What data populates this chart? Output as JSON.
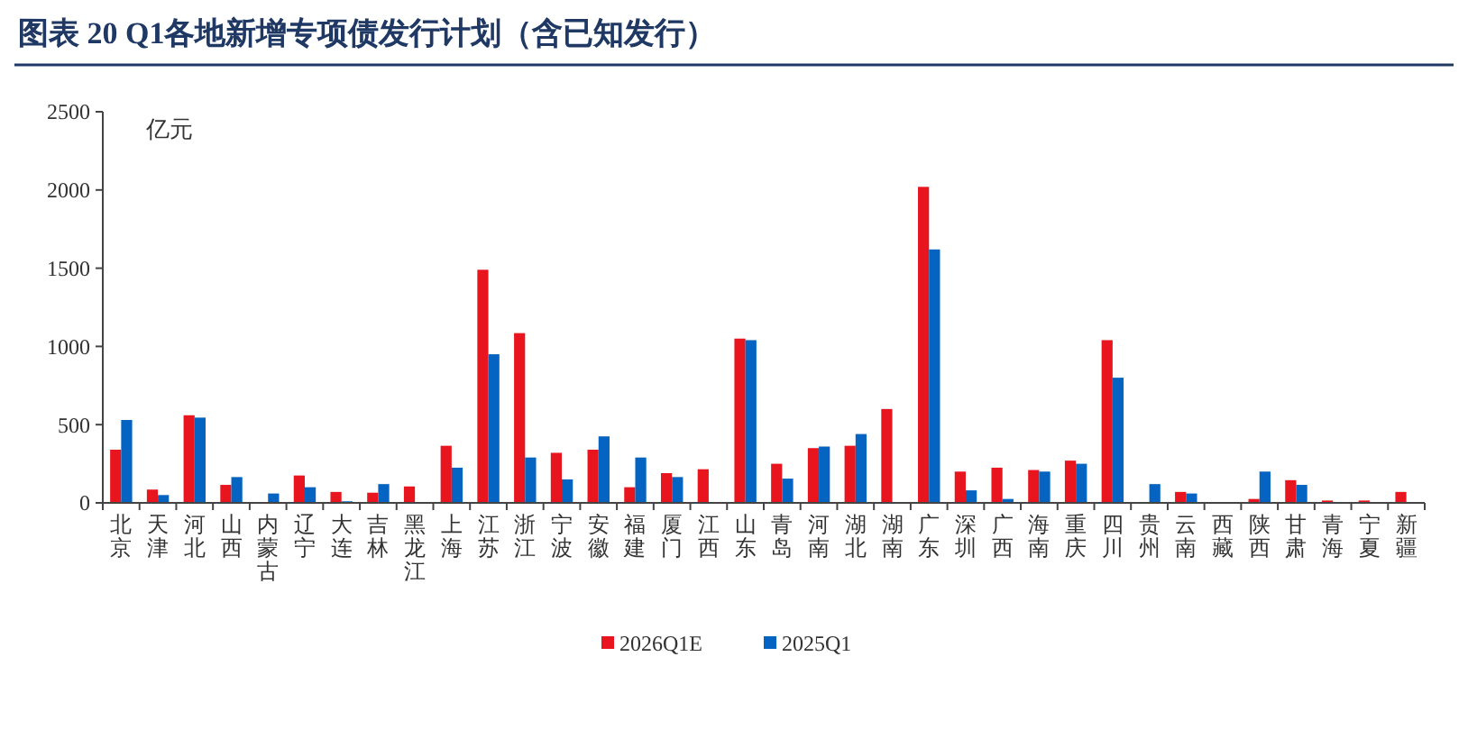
{
  "chart_data": {
    "type": "bar",
    "title": "图表 20 Q1各地新增专项债发行计划（含已知发行）",
    "ylabel": "亿元",
    "categories": [
      "北京",
      "天津",
      "河北",
      "山西",
      "内蒙古",
      "辽宁",
      "大连",
      "吉林",
      "黑龙江",
      "上海",
      "江苏",
      "浙江",
      "宁波",
      "安徽",
      "福建",
      "厦门",
      "江西",
      "山东",
      "青岛",
      "河南",
      "湖北",
      "湖南",
      "广东",
      "深圳",
      "广西",
      "海南",
      "重庆",
      "四川",
      "贵州",
      "云南",
      "西藏",
      "陕西",
      "甘肃",
      "青海",
      "宁夏",
      "新疆"
    ],
    "series": [
      {
        "name": "2026Q1E",
        "color": "#e8141e",
        "values": [
          340,
          85,
          560,
          115,
          null,
          175,
          70,
          65,
          105,
          365,
          1490,
          1085,
          320,
          340,
          100,
          190,
          215,
          1050,
          250,
          350,
          365,
          600,
          2020,
          200,
          225,
          210,
          270,
          1040,
          null,
          70,
          null,
          25,
          145,
          15,
          15,
          70
        ]
      },
      {
        "name": "2025Q1",
        "color": "#0563c1",
        "values": [
          530,
          50,
          545,
          165,
          60,
          100,
          10,
          120,
          null,
          225,
          950,
          290,
          150,
          425,
          290,
          165,
          null,
          1040,
          155,
          360,
          440,
          null,
          1620,
          80,
          25,
          200,
          250,
          800,
          120,
          60,
          null,
          200,
          115,
          null,
          null,
          null
        ]
      }
    ],
    "ylim": [
      0,
      2500
    ],
    "yticks": [
      0,
      500,
      1000,
      1500,
      2000,
      2500
    ],
    "grid": false,
    "legend": "bottom"
  }
}
